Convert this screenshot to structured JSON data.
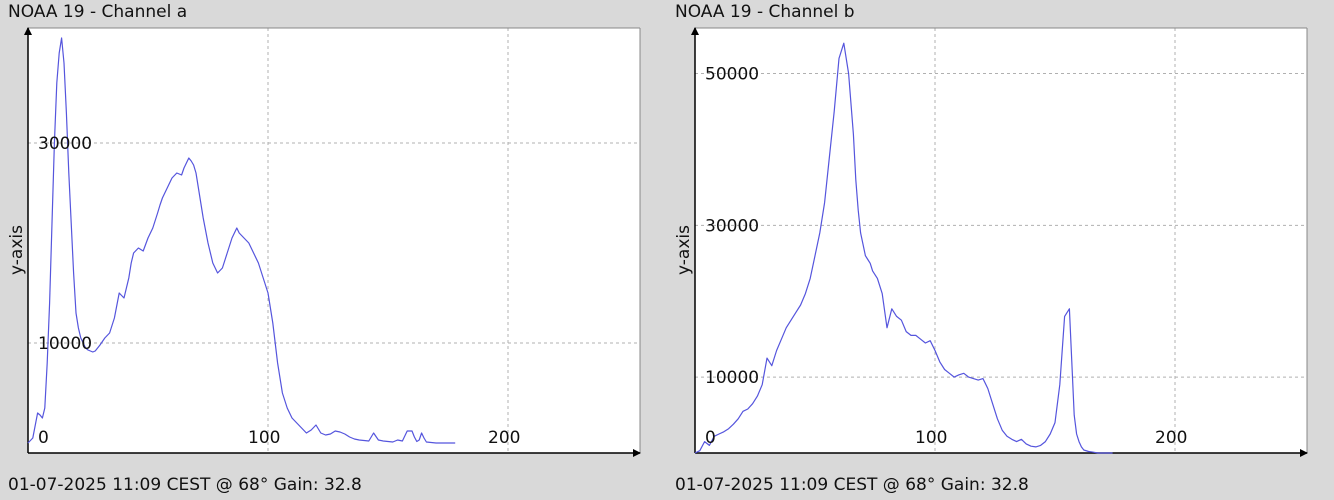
{
  "chart_data": [
    {
      "type": "line",
      "title": "NOAA 19 - Channel a",
      "footer": "01-07-2025 11:09 CEST @ 68° Gain: 32.8",
      "ylabel": "y-axis",
      "xlabel": "",
      "xlim": [
        0,
        255
      ],
      "ylim": [
        -1000,
        41500
      ],
      "x_ticks": [
        {
          "value": 0,
          "label": "0"
        },
        {
          "value": 100,
          "label": "100"
        },
        {
          "value": 200,
          "label": "200"
        }
      ],
      "y_ticks": [
        {
          "value": 10000,
          "label": "10000"
        },
        {
          "value": 30000,
          "label": "30000"
        }
      ],
      "grid": true,
      "color": "#5555dd",
      "series": [
        {
          "x": [
            0,
            2,
            4,
            5,
            6,
            7,
            8,
            9,
            10,
            11,
            12,
            13,
            14,
            15,
            16,
            17,
            18,
            19,
            20,
            21,
            22,
            23,
            24,
            25,
            26,
            27,
            28,
            29,
            30,
            32,
            34,
            36,
            38,
            40,
            42,
            43,
            44,
            46,
            48,
            50,
            52,
            54,
            55,
            56,
            58,
            60,
            62,
            64,
            65,
            66,
            67,
            68,
            69,
            70,
            71,
            72,
            73,
            75,
            77,
            79,
            81,
            83,
            85,
            87,
            88,
            90,
            92,
            94,
            96,
            98,
            100,
            102,
            104,
            106,
            108,
            110,
            112,
            114,
            116,
            118,
            120,
            122,
            124,
            126,
            128,
            130,
            132,
            134,
            136,
            138,
            140,
            142,
            144,
            146,
            148,
            150,
            152,
            154,
            156,
            158,
            160,
            161,
            162,
            163,
            164,
            165,
            166,
            168,
            170,
            172,
            174,
            176,
            178
          ],
          "y": [
            0,
            500,
            3000,
            2800,
            2500,
            3500,
            8000,
            14000,
            22000,
            30000,
            36000,
            39000,
            40500,
            38000,
            33000,
            27000,
            22000,
            17000,
            13000,
            11500,
            10500,
            10000,
            9500,
            9300,
            9200,
            9100,
            9200,
            9500,
            9800,
            10500,
            11000,
            12500,
            15000,
            14500,
            16500,
            18000,
            19000,
            19500,
            19200,
            20500,
            21500,
            23000,
            23800,
            24500,
            25500,
            26500,
            27000,
            26800,
            27500,
            28000,
            28500,
            28200,
            27800,
            27000,
            25500,
            24000,
            22500,
            20000,
            18000,
            17000,
            17500,
            19000,
            20500,
            21500,
            21000,
            20500,
            20000,
            19000,
            18000,
            16500,
            15000,
            12000,
            8000,
            5000,
            3500,
            2500,
            2000,
            1500,
            1000,
            1300,
            1800,
            1000,
            800,
            900,
            1200,
            1100,
            900,
            600,
            400,
            300,
            250,
            200,
            1000,
            300,
            200,
            150,
            100,
            300,
            200,
            1200,
            1200,
            600,
            150,
            300,
            1000,
            500,
            100,
            50,
            0,
            0,
            0,
            0,
            0
          ]
        }
      ]
    },
    {
      "type": "line",
      "title": "NOAA 19 - Channel b",
      "footer": "01-07-2025 11:09 CEST @ 68° Gain: 32.8",
      "ylabel": "y-axis",
      "xlabel": "",
      "xlim": [
        0,
        255
      ],
      "ylim": [
        0,
        56000
      ],
      "x_ticks": [
        {
          "value": 0,
          "label": "0"
        },
        {
          "value": 100,
          "label": "100"
        },
        {
          "value": 200,
          "label": "200"
        }
      ],
      "y_ticks": [
        {
          "value": 10000,
          "label": "10000"
        },
        {
          "value": 30000,
          "label": "30000"
        },
        {
          "value": 50000,
          "label": "50000"
        }
      ],
      "grid": true,
      "color": "#5555dd",
      "series": [
        {
          "x": [
            0,
            2,
            4,
            6,
            8,
            10,
            12,
            14,
            16,
            18,
            20,
            22,
            24,
            26,
            28,
            30,
            32,
            34,
            36,
            38,
            40,
            42,
            44,
            46,
            48,
            50,
            52,
            54,
            56,
            58,
            60,
            62,
            64,
            66,
            67,
            68,
            69,
            70,
            71,
            72,
            73,
            74,
            76,
            78,
            80,
            82,
            84,
            86,
            88,
            90,
            92,
            94,
            96,
            98,
            100,
            102,
            104,
            106,
            108,
            110,
            112,
            114,
            116,
            118,
            120,
            122,
            124,
            126,
            128,
            130,
            132,
            134,
            136,
            138,
            140,
            142,
            144,
            146,
            148,
            150,
            152,
            154,
            156,
            157,
            158,
            159,
            160,
            161,
            162,
            164,
            166,
            168,
            170,
            172,
            174
          ],
          "y": [
            0,
            300,
            1500,
            1000,
            2200,
            2500,
            2800,
            3200,
            3800,
            4500,
            5500,
            5800,
            6500,
            7500,
            9000,
            12500,
            11500,
            13500,
            15000,
            16500,
            17500,
            18500,
            19500,
            21000,
            23000,
            26000,
            29000,
            33000,
            39000,
            45000,
            52000,
            54000,
            50000,
            42000,
            36000,
            32000,
            29000,
            27500,
            26000,
            25500,
            25000,
            24000,
            23000,
            21000,
            16500,
            19000,
            18000,
            17500,
            16000,
            15500,
            15500,
            15000,
            14500,
            14800,
            13500,
            12000,
            11000,
            10500,
            10000,
            10300,
            10500,
            10000,
            9800,
            9600,
            9800,
            8500,
            6500,
            4500,
            3000,
            2200,
            1800,
            1500,
            1800,
            1200,
            900,
            800,
            1000,
            1500,
            2500,
            4000,
            9000,
            18000,
            19000,
            12000,
            5000,
            2500,
            1500,
            800,
            400,
            200,
            100,
            0,
            0,
            0,
            0
          ]
        }
      ]
    }
  ]
}
